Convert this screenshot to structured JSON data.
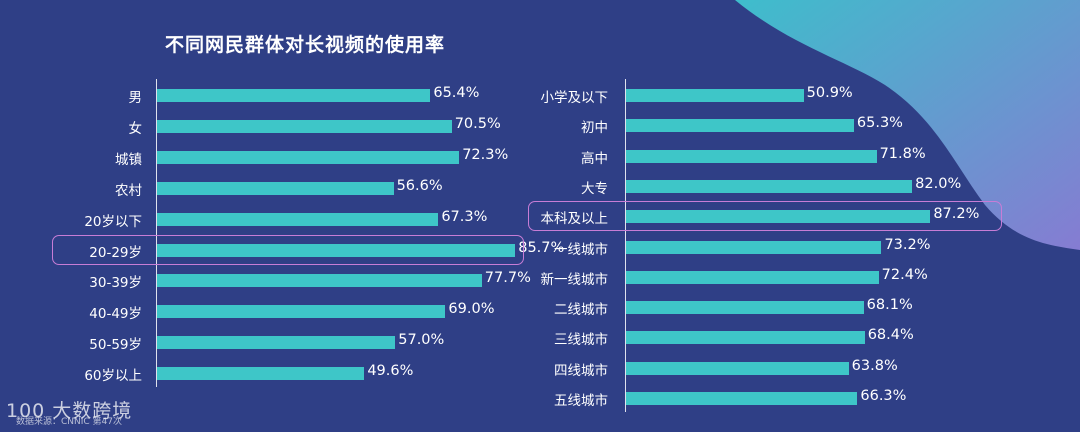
{
  "title": "不同网民群体对长视频的使用率",
  "chart_data": [
    {
      "type": "bar",
      "orientation": "horizontal",
      "categories": [
        "男",
        "女",
        "城镇",
        "农村",
        "20岁以下",
        "20-29岁",
        "30-39岁",
        "40-49岁",
        "50-59岁",
        "60岁以上"
      ],
      "values": [
        65.4,
        70.5,
        72.3,
        56.6,
        67.3,
        85.7,
        77.7,
        69.0,
        57.0,
        49.6
      ],
      "value_labels": [
        "65.4%",
        "70.5%",
        "72.3%",
        "56.6%",
        "67.3%",
        "85.7%",
        "77.7%",
        "69.0%",
        "57.0%",
        "49.6%"
      ],
      "highlight": "20-29岁",
      "bar_color": "#3ec6c8"
    },
    {
      "type": "bar",
      "orientation": "horizontal",
      "categories": [
        "小学及以下",
        "初中",
        "高中",
        "大专",
        "本科及以上",
        "一线城市",
        "新一线城市",
        "二线城市",
        "三线城市",
        "四线城市",
        "五线城市"
      ],
      "values": [
        50.9,
        65.3,
        71.8,
        82.0,
        87.2,
        73.2,
        72.4,
        68.1,
        68.4,
        63.8,
        66.3
      ],
      "value_labels": [
        "50.9%",
        "65.3%",
        "71.8%",
        "82.0%",
        "87.2%",
        "73.2%",
        "72.4%",
        "68.1%",
        "68.4%",
        "63.8%",
        "66.3%"
      ],
      "highlight": "本科及以上",
      "bar_color": "#3ec6c8"
    }
  ],
  "footer": {
    "brand": "100 大数跨境",
    "source": "数据来源：CNNIC 第47次"
  },
  "colors": {
    "background": "#2f3f86",
    "bar": "#3ec6c8",
    "highlight_border": "#c77dd6",
    "decor_teal": "#45c3cf",
    "decor_purple": "#7d7fd4"
  }
}
